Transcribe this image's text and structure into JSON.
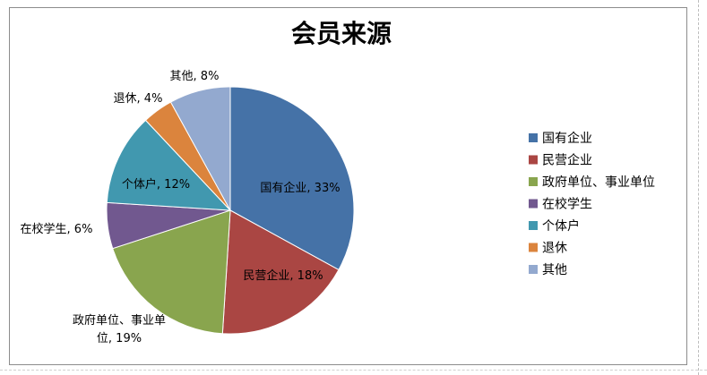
{
  "chart_data": {
    "type": "pie",
    "title": "会员来源",
    "categories": [
      "国有企业",
      "民营企业",
      "政府单位、事业单位",
      "在校学生",
      "个体户",
      "退休",
      "其他"
    ],
    "values": [
      33,
      18,
      19,
      6,
      12,
      4,
      8
    ],
    "unit": "%",
    "data_labels": [
      [
        "国有企业, 33%"
      ],
      [
        "民营企业, 18%"
      ],
      [
        "政府单位、事业单",
        "位, 19%"
      ],
      [
        "在校学生, 6%"
      ],
      [
        "个体户, 12%"
      ],
      [
        "退休, 4%"
      ],
      [
        "其他, 8%"
      ]
    ],
    "colors": [
      "#4572a7",
      "#aa4643",
      "#89a54e",
      "#71588f",
      "#4198af",
      "#db843d",
      "#93a9cf"
    ],
    "legend_position": "right"
  }
}
